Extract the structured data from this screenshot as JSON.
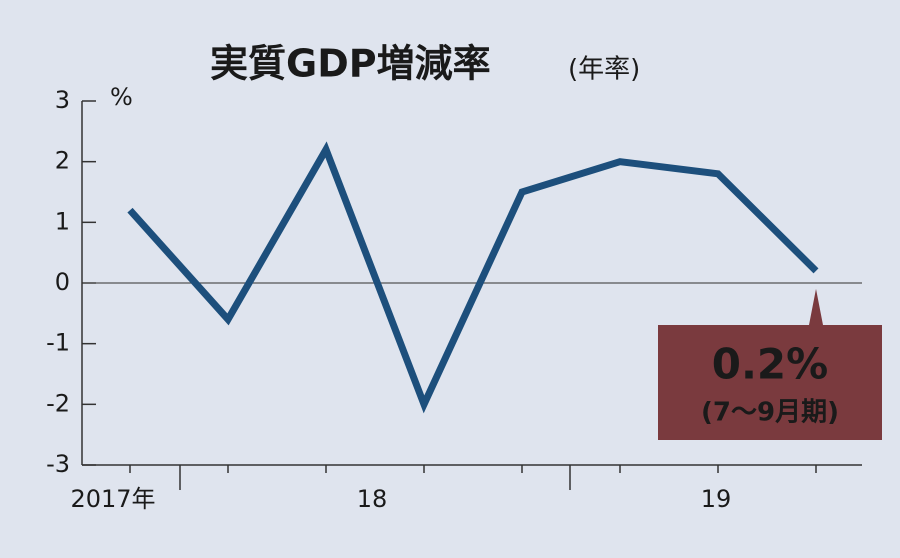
{
  "chart_data": {
    "type": "line",
    "title": "実質GDP増減率",
    "subtitle": "(年率)",
    "y_unit": "%",
    "categories": [
      null,
      null,
      null,
      null,
      null,
      null,
      null,
      null
    ],
    "x_groups": [
      "2017年",
      "18",
      "19"
    ],
    "series": [
      {
        "name": "実質GDP増減率",
        "color": "#1d4f7c",
        "values": [
          1.2,
          -0.6,
          2.2,
          -2.0,
          1.5,
          2.0,
          1.8,
          0.2
        ],
        "value_labels": [
          null,
          null,
          null,
          null,
          null,
          null,
          null,
          "0.2%"
        ]
      }
    ],
    "annotation": "(7～9月期)",
    "ylim": [
      -3,
      3
    ],
    "yticks": [
      -3,
      -2,
      -1,
      0,
      1,
      2,
      3
    ]
  }
}
